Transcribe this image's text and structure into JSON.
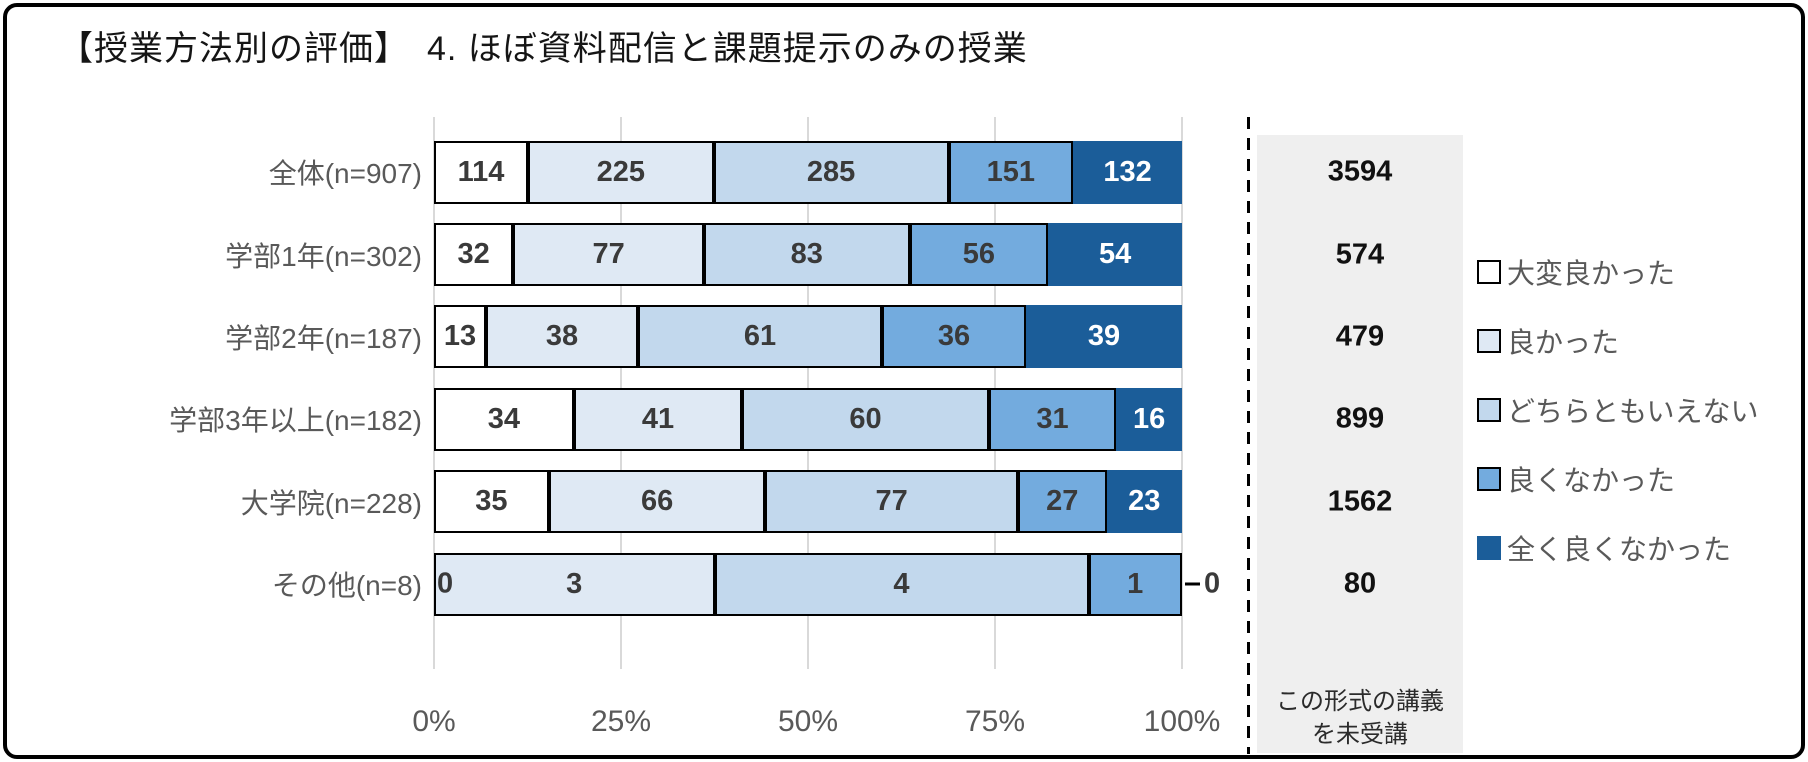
{
  "title": "【授業方法別の評価】　4. ほぼ資料配信と課題提示のみの授業",
  "colors": {
    "segments": [
      "#ffffff",
      "#dfe9f4",
      "#c2d8ed",
      "#73abde",
      "#1b5d99"
    ],
    "segment_border": "#000000",
    "value_text": "#3a3a3a",
    "value_text_on_dark": "#ffffff",
    "axis_text": "#595959",
    "grid": "#d9d9d9",
    "panel_bg": "#efefef",
    "dashed_line": "#000000"
  },
  "chart_data": {
    "type": "bar",
    "orientation": "horizontal",
    "stacked_percent": true,
    "title": "【授業方法別の評価】　4. ほぼ資料配信と課題提示のみの授業",
    "xlabel": "",
    "ylabel": "",
    "x_ticks": [
      {
        "label": "0%",
        "pos": 0
      },
      {
        "label": "25%",
        "pos": 25
      },
      {
        "label": "50%",
        "pos": 50
      },
      {
        "label": "75%",
        "pos": 75
      },
      {
        "label": "100%",
        "pos": 100
      }
    ],
    "xlim": [
      0,
      100
    ],
    "grid": true,
    "series_names": [
      "大変良かった",
      "良かった",
      "どちらともいえない",
      "良くなかった",
      "全く良くなかった"
    ],
    "categories": [
      "全体(n=907)",
      "学部1年(n=302)",
      "学部2年(n=187)",
      "学部3年以上(n=182)",
      "大学院(n=228)",
      "その他(n=8)"
    ],
    "rows": [
      {
        "label": "全体(n=907)",
        "values": [
          114,
          225,
          285,
          151,
          132
        ],
        "not_attended": "3594"
      },
      {
        "label": "学部1年(n=302)",
        "values": [
          32,
          77,
          83,
          56,
          54
        ],
        "not_attended": "574"
      },
      {
        "label": "学部2年(n=187)",
        "values": [
          13,
          38,
          61,
          36,
          39
        ],
        "not_attended": "479"
      },
      {
        "label": "学部3年以上(n=182)",
        "values": [
          34,
          41,
          60,
          31,
          16
        ],
        "not_attended": "899"
      },
      {
        "label": "大学院(n=228)",
        "values": [
          35,
          66,
          77,
          27,
          23
        ],
        "not_attended": "1562"
      },
      {
        "label": "その他(n=8)",
        "values": [
          0,
          3,
          4,
          1,
          0
        ],
        "not_attended": "80",
        "zero_left": "0",
        "zero_right": "0"
      }
    ]
  },
  "legend": {
    "position": "right",
    "items": [
      {
        "label": "大変良かった",
        "color": "#ffffff",
        "bordered": true
      },
      {
        "label": "良かった",
        "color": "#dfe9f4",
        "bordered": true
      },
      {
        "label": "どちらともいえない",
        "color": "#c2d8ed",
        "bordered": true
      },
      {
        "label": "良くなかった",
        "color": "#73abde",
        "bordered": true
      },
      {
        "label": "全く良くなかった",
        "color": "#1b5d99",
        "bordered": false
      }
    ]
  },
  "panel": {
    "note_line1": "この形式の講義",
    "note_line2": "を未受講"
  }
}
